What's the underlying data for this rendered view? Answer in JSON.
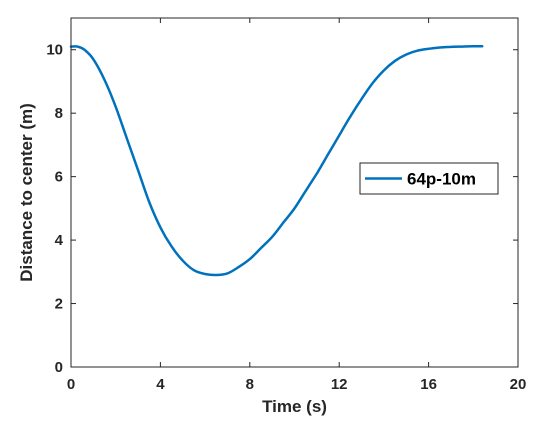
{
  "chart_data": {
    "type": "line",
    "title": "",
    "xlabel": "Time (s)",
    "ylabel": "Distance to center (m)",
    "xlim": [
      0,
      20
    ],
    "ylim": [
      0,
      11
    ],
    "xticks": [
      0,
      4,
      8,
      12,
      16,
      20
    ],
    "yticks": [
      0,
      2,
      4,
      6,
      8,
      10
    ],
    "grid": false,
    "box": true,
    "legend_position": "right",
    "series": [
      {
        "name": "64p-10m",
        "color": "#0072BD",
        "x": [
          0,
          0.3,
          0.6,
          1.0,
          1.5,
          2.0,
          2.5,
          3.0,
          3.5,
          4.0,
          4.5,
          5.0,
          5.5,
          6.0,
          6.5,
          7.0,
          7.5,
          8.0,
          8.5,
          9.0,
          9.5,
          10.0,
          10.5,
          11.0,
          11.5,
          12.0,
          12.5,
          13.0,
          13.5,
          14.0,
          14.5,
          15.0,
          15.5,
          16.0,
          16.5,
          17.0,
          17.5,
          18.0,
          18.4
        ],
        "y": [
          10.1,
          10.1,
          10.0,
          9.7,
          9.05,
          8.2,
          7.2,
          6.2,
          5.2,
          4.4,
          3.8,
          3.35,
          3.05,
          2.93,
          2.9,
          2.95,
          3.15,
          3.4,
          3.75,
          4.1,
          4.55,
          5.0,
          5.55,
          6.1,
          6.7,
          7.3,
          7.9,
          8.45,
          8.95,
          9.35,
          9.65,
          9.85,
          9.97,
          10.03,
          10.07,
          10.09,
          10.1,
          10.11,
          10.11
        ]
      }
    ]
  }
}
